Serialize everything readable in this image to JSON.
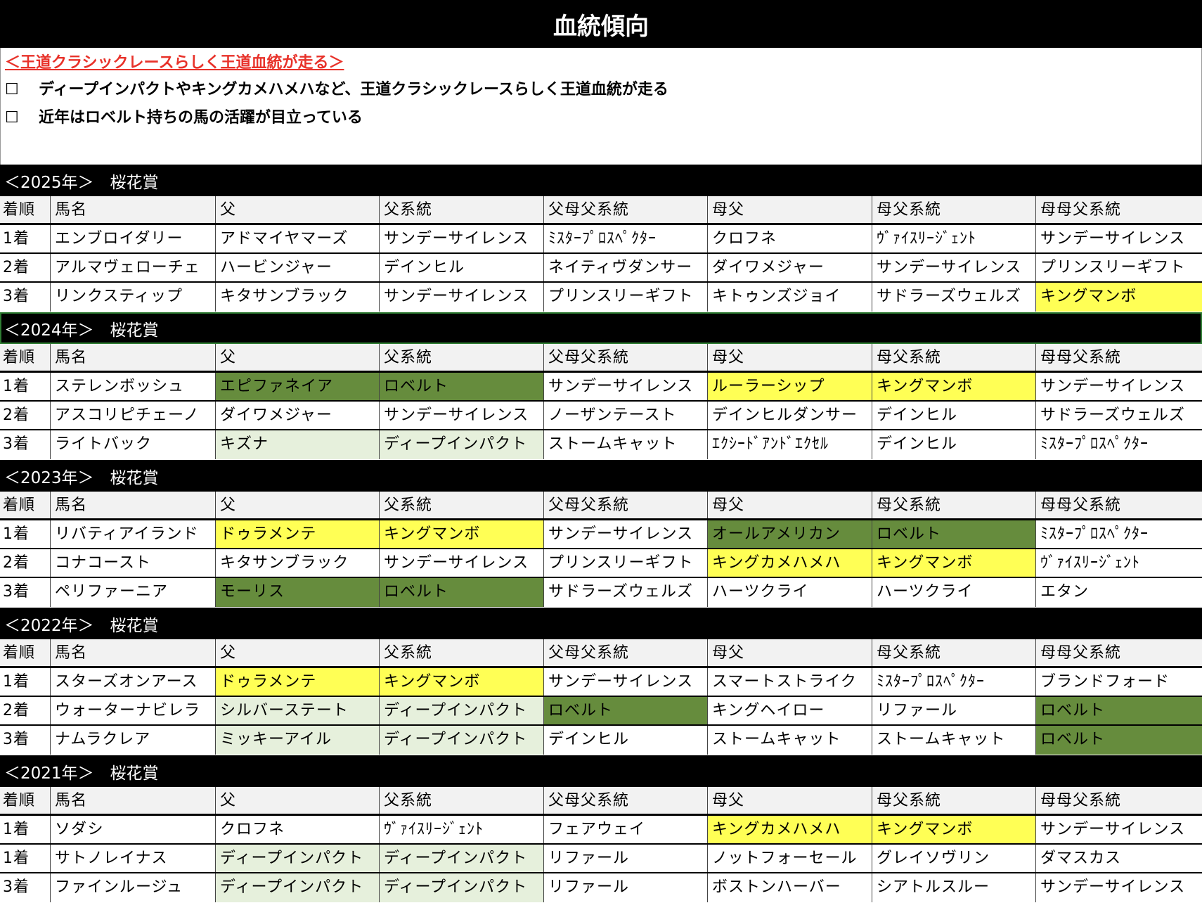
{
  "title": "血統傾向",
  "notes": {
    "subheading": "＜王道クラシックレースらしく王道血統が走る＞",
    "items": [
      {
        "checkbox": "☐",
        "text": "ディープインパクトやキングカメハメハなど、王道クラシックレースらしく王道血統が走る"
      },
      {
        "checkbox": "☐",
        "text": "近年はロベルト持ちの馬の活躍が目立っている"
      }
    ]
  },
  "colors": {
    "yellow": "#ffff55",
    "dark_green": "#668c3d",
    "light_green": "#e6f0dc",
    "red": "#e8322a"
  },
  "highlight_legend": {
    "Y": "yellow",
    "D": "dark_green",
    "L": "light_green"
  },
  "columns": [
    "着順",
    "馬名",
    "父",
    "父系統",
    "父母父系統",
    "母父",
    "母父系統",
    "母母父系統"
  ],
  "years": [
    {
      "label": "＜2025年＞　桜花賞",
      "rows": [
        {
          "cells": [
            "1着",
            "エンブロイダリー",
            "アドマイヤマーズ",
            "サンデーサイレンス",
            "ﾐｽﾀｰﾌﾟﾛｽﾍﾟｸﾀｰ",
            "クロフネ",
            "ｳﾞｧｲｽﾘｰｼﾞｪﾝﾄ",
            "サンデーサイレンス"
          ],
          "hl": [
            "",
            "",
            "",
            "",
            "",
            "",
            "",
            ""
          ]
        },
        {
          "cells": [
            "2着",
            "アルマヴェローチェ",
            "ハービンジャー",
            "デインヒル",
            "ネイティヴダンサー",
            "ダイワメジャー",
            "サンデーサイレンス",
            "プリンスリーギフト"
          ],
          "hl": [
            "",
            "",
            "",
            "",
            "",
            "",
            "",
            ""
          ]
        },
        {
          "cells": [
            "3着",
            "リンクスティップ",
            "キタサンブラック",
            "サンデーサイレンス",
            "プリンスリーギフト",
            "キトゥンズジョイ",
            "サドラーズウェルズ",
            "キングマンボ"
          ],
          "hl": [
            "",
            "",
            "",
            "",
            "",
            "",
            "",
            "Y"
          ]
        }
      ]
    },
    {
      "label": "＜2024年＞　桜花賞",
      "selected": true,
      "rows": [
        {
          "cells": [
            "1着",
            "ステレンボッシュ",
            "エピファネイア",
            "ロベルト",
            "サンデーサイレンス",
            "ルーラーシップ",
            "キングマンボ",
            "サンデーサイレンス"
          ],
          "hl": [
            "",
            "",
            "D",
            "D",
            "",
            "Y",
            "Y",
            ""
          ]
        },
        {
          "cells": [
            "2着",
            "アスコリピチェーノ",
            "ダイワメジャー",
            "サンデーサイレンス",
            "ノーザンテースト",
            "デインヒルダンサー",
            "デインヒル",
            "サドラーズウェルズ"
          ],
          "hl": [
            "",
            "",
            "",
            "",
            "",
            "",
            "",
            ""
          ]
        },
        {
          "cells": [
            "3着",
            "ライトバック",
            "キズナ",
            "ディープインパクト",
            "ストームキャット",
            "ｴｸｼｰﾄﾞｱﾝﾄﾞｴｸｾﾙ",
            "デインヒル",
            "ﾐｽﾀｰﾌﾟﾛｽﾍﾟｸﾀｰ"
          ],
          "hl": [
            "",
            "",
            "L",
            "L",
            "",
            "",
            "",
            ""
          ]
        }
      ]
    },
    {
      "label": "＜2023年＞　桜花賞",
      "rows": [
        {
          "cells": [
            "1着",
            "リバティアイランド",
            "ドゥラメンテ",
            "キングマンボ",
            "サンデーサイレンス",
            "オールアメリカン",
            "ロベルト",
            "ﾐｽﾀｰﾌﾟﾛｽﾍﾟｸﾀｰ"
          ],
          "hl": [
            "",
            "",
            "Y",
            "Y",
            "",
            "D",
            "D",
            ""
          ]
        },
        {
          "cells": [
            "2着",
            "コナコースト",
            "キタサンブラック",
            "サンデーサイレンス",
            "プリンスリーギフト",
            "キングカメハメハ",
            "キングマンボ",
            "ｳﾞｧｲｽﾘｰｼﾞｪﾝﾄ"
          ],
          "hl": [
            "",
            "",
            "",
            "",
            "",
            "Y",
            "Y",
            ""
          ]
        },
        {
          "cells": [
            "3着",
            "ペリファーニア",
            "モーリス",
            "ロベルト",
            "サドラーズウェルズ",
            "ハーツクライ",
            "ハーツクライ",
            "エタン"
          ],
          "hl": [
            "",
            "",
            "D",
            "D",
            "",
            "",
            "",
            ""
          ]
        }
      ]
    },
    {
      "label": "＜2022年＞　桜花賞",
      "rows": [
        {
          "cells": [
            "1着",
            "スターズオンアース",
            "ドゥラメンテ",
            "キングマンボ",
            "サンデーサイレンス",
            "スマートストライク",
            "ﾐｽﾀｰﾌﾟﾛｽﾍﾟｸﾀｰ",
            "ブランドフォード"
          ],
          "hl": [
            "",
            "",
            "Y",
            "Y",
            "",
            "",
            "",
            ""
          ]
        },
        {
          "cells": [
            "2着",
            "ウォーターナビレラ",
            "シルバーステート",
            "ディープインパクト",
            "ロベルト",
            "キングヘイロー",
            "リファール",
            "ロベルト"
          ],
          "hl": [
            "",
            "",
            "L",
            "L",
            "D",
            "",
            "",
            "D"
          ]
        },
        {
          "cells": [
            "3着",
            "ナムラクレア",
            "ミッキーアイル",
            "ディープインパクト",
            "デインヒル",
            "ストームキャット",
            "ストームキャット",
            "ロベルト"
          ],
          "hl": [
            "",
            "",
            "L",
            "L",
            "",
            "",
            "",
            "D"
          ]
        }
      ]
    },
    {
      "label": "＜2021年＞　桜花賞",
      "rows": [
        {
          "cells": [
            "1着",
            "ソダシ",
            "クロフネ",
            "ｳﾞｧｲｽﾘｰｼﾞｪﾝﾄ",
            "フェアウェイ",
            "キングカメハメハ",
            "キングマンボ",
            "サンデーサイレンス"
          ],
          "hl": [
            "",
            "",
            "",
            "",
            "",
            "Y",
            "Y",
            ""
          ]
        },
        {
          "cells": [
            "1着",
            "サトノレイナス",
            "ディープインパクト",
            "ディープインパクト",
            "リファール",
            "ノットフォーセール",
            "グレイソヴリン",
            "ダマスカス"
          ],
          "hl": [
            "",
            "",
            "L",
            "L",
            "",
            "",
            "",
            ""
          ]
        },
        {
          "cells": [
            "3着",
            "ファインルージュ",
            "ディープインパクト",
            "ディープインパクト",
            "リファール",
            "ボストンハーバー",
            "シアトルスルー",
            "サンデーサイレンス"
          ],
          "hl": [
            "",
            "",
            "L",
            "L",
            "",
            "",
            "",
            ""
          ]
        }
      ]
    }
  ]
}
